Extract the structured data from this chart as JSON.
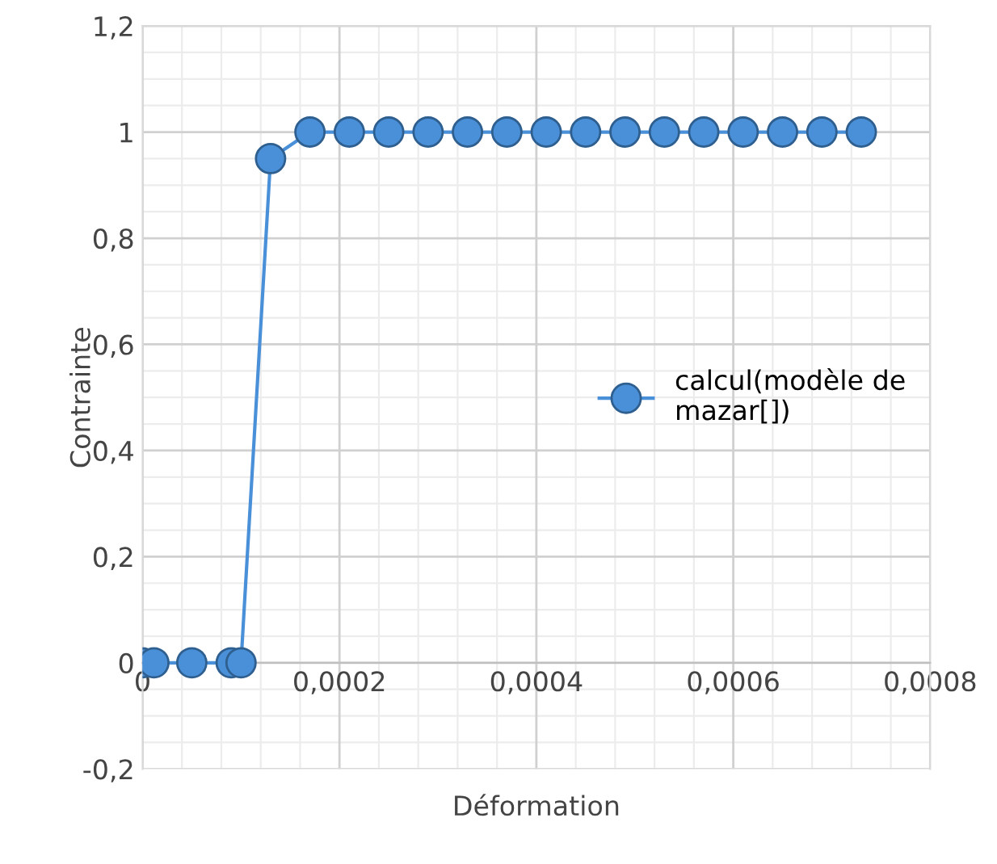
{
  "chart_data": {
    "type": "line",
    "xlabel": "Déformation",
    "ylabel": "Contrainte",
    "series": [
      {
        "name": "calcul(modèle de mazar[])",
        "color": "#4a90d9",
        "x": [
          0,
          1.15e-05,
          5e-05,
          9e-05,
          0.0001,
          0.00013,
          0.00017,
          0.00021,
          0.00025,
          0.00029,
          0.00033,
          0.00037,
          0.00041,
          0.00045,
          0.00049,
          0.00053,
          0.00057,
          0.00061,
          0.00065,
          0.00069,
          0.00073
        ],
        "values": [
          0,
          0,
          0,
          0,
          0,
          0.95,
          1,
          1,
          1,
          1,
          1,
          1,
          1,
          1,
          1,
          1,
          1,
          1,
          1,
          1,
          1
        ]
      }
    ],
    "xlim": [
      0,
      0.0008
    ],
    "xticks": [
      0,
      {
        "value": 0.0002,
        "label": "0,0002"
      },
      {
        "value": 0.0004,
        "label": "0,0004"
      },
      {
        "value": 0.0006,
        "label": "0,0006"
      },
      {
        "value": 0.0008,
        "label": "0,0008"
      }
    ],
    "ylim": [
      -0.2,
      1.2
    ],
    "yticks": [
      {
        "value": -0.2,
        "label": "-0,2"
      },
      0,
      {
        "value": 0.2,
        "label": "0,2"
      },
      {
        "value": 0.4,
        "label": "0,4"
      },
      {
        "value": 0.6,
        "label": "0,6"
      },
      {
        "value": 0.8,
        "label": "0,8"
      },
      1,
      {
        "value": 1.2,
        "label": "1,2"
      }
    ],
    "grid": true,
    "legend": "right",
    "marker": "circle",
    "line_style": "solid"
  }
}
